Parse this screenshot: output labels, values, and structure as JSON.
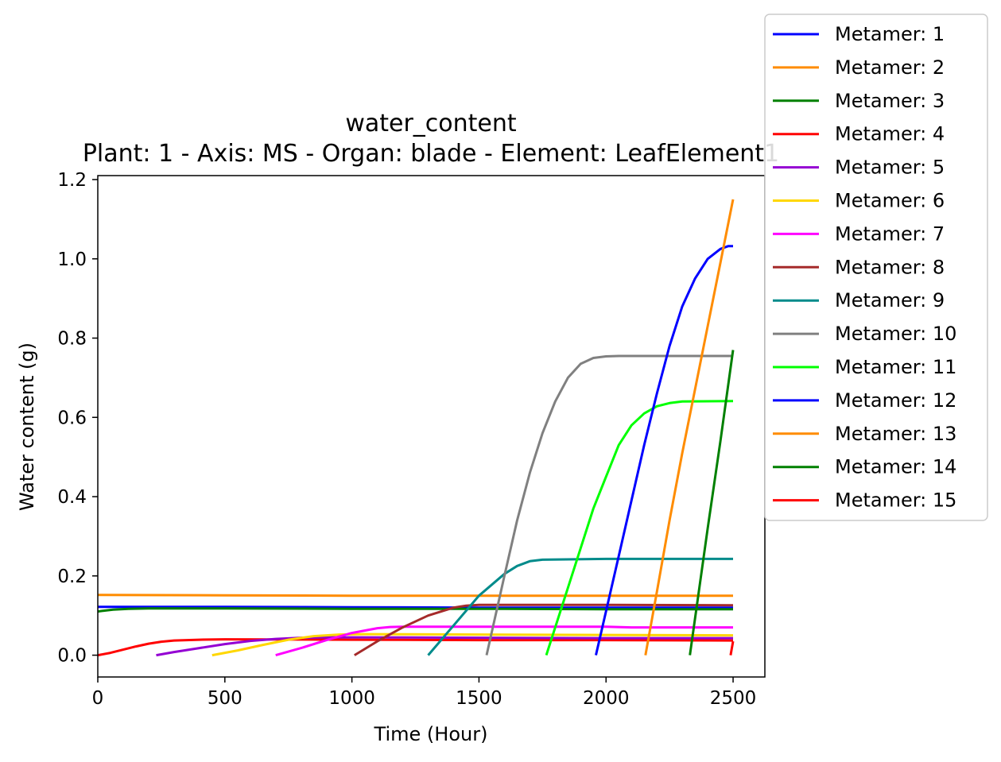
{
  "chart_data": {
    "type": "line",
    "title": "water_content",
    "subtitle": "Plant: 1 - Axis: MS - Organ: blade - Element: LeafElement1",
    "xlabel": "Time (Hour)",
    "ylabel": "Water content (g)",
    "xlim": [
      0,
      2625
    ],
    "ylim": [
      -0.055,
      1.21
    ],
    "x_ticks": [
      "0",
      "500",
      "1000",
      "1500",
      "2000",
      "2500"
    ],
    "y_ticks": [
      "0.0",
      "0.2",
      "0.4",
      "0.6",
      "0.8",
      "1.0",
      "1.2"
    ],
    "grid": false,
    "legend_position": "upper-right-outside",
    "series": [
      {
        "name": "Metamer: 1",
        "color": "#0000ff",
        "x": [
          0,
          500,
          1000,
          1500,
          2000,
          2500
        ],
        "y": [
          0.122,
          0.122,
          0.121,
          0.12,
          0.12,
          0.12
        ]
      },
      {
        "name": "Metamer: 2",
        "color": "#ff8c00",
        "x": [
          0,
          500,
          1000,
          1500,
          2000,
          2500
        ],
        "y": [
          0.152,
          0.151,
          0.15,
          0.15,
          0.15,
          0.15
        ]
      },
      {
        "name": "Metamer: 3",
        "color": "#008000",
        "x": [
          0,
          20,
          60,
          120,
          200,
          500,
          1000,
          1500,
          2000,
          2500
        ],
        "y": [
          0.11,
          0.112,
          0.115,
          0.117,
          0.118,
          0.118,
          0.117,
          0.117,
          0.116,
          0.116
        ]
      },
      {
        "name": "Metamer: 4",
        "color": "#ff0000",
        "x": [
          0,
          50,
          100,
          150,
          200,
          250,
          300,
          400,
          500,
          1000,
          1500,
          2000,
          2500
        ],
        "y": [
          0.0,
          0.006,
          0.014,
          0.022,
          0.029,
          0.034,
          0.037,
          0.039,
          0.04,
          0.039,
          0.038,
          0.038,
          0.037
        ]
      },
      {
        "name": "Metamer: 5",
        "color": "#9400d3",
        "x": [
          230,
          300,
          400,
          500,
          600,
          700,
          800,
          900,
          1000,
          1500,
          2000,
          2500
        ],
        "y": [
          0.0,
          0.008,
          0.018,
          0.028,
          0.036,
          0.041,
          0.044,
          0.045,
          0.045,
          0.044,
          0.043,
          0.043
        ]
      },
      {
        "name": "Metamer: 6",
        "color": "#ffd700",
        "x": [
          450,
          550,
          650,
          750,
          850,
          950,
          1050,
          1500,
          2000,
          2500
        ],
        "y": [
          0.0,
          0.012,
          0.026,
          0.039,
          0.048,
          0.052,
          0.053,
          0.052,
          0.051,
          0.05
        ]
      },
      {
        "name": "Metamer: 7",
        "color": "#ff00ff",
        "x": [
          700,
          800,
          900,
          1000,
          1100,
          1150,
          1200,
          1500,
          2000,
          2100,
          2500
        ],
        "y": [
          0.0,
          0.018,
          0.038,
          0.056,
          0.068,
          0.071,
          0.072,
          0.072,
          0.072,
          0.07,
          0.07
        ]
      },
      {
        "name": "Metamer: 8",
        "color": "#a52a2a",
        "x": [
          1010,
          1100,
          1200,
          1300,
          1400,
          1450,
          1500,
          2000,
          2500
        ],
        "y": [
          0.0,
          0.035,
          0.07,
          0.1,
          0.12,
          0.125,
          0.127,
          0.127,
          0.126
        ]
      },
      {
        "name": "Metamer: 9",
        "color": "#008b8b",
        "x": [
          1300,
          1400,
          1500,
          1600,
          1650,
          1700,
          1750,
          2000,
          2500
        ],
        "y": [
          0.0,
          0.075,
          0.15,
          0.205,
          0.225,
          0.237,
          0.241,
          0.243,
          0.243
        ]
      },
      {
        "name": "Metamer: 10",
        "color": "#808080",
        "x": [
          1530,
          1600,
          1650,
          1700,
          1750,
          1800,
          1850,
          1900,
          1950,
          2000,
          2050,
          2500
        ],
        "y": [
          0.0,
          0.2,
          0.34,
          0.46,
          0.56,
          0.64,
          0.7,
          0.735,
          0.75,
          0.754,
          0.755,
          0.755
        ]
      },
      {
        "name": "Metamer: 11",
        "color": "#00ff00",
        "x": [
          1765,
          1850,
          1900,
          1950,
          2000,
          2050,
          2100,
          2150,
          2200,
          2250,
          2300,
          2500
        ],
        "y": [
          0.0,
          0.17,
          0.27,
          0.37,
          0.45,
          0.53,
          0.58,
          0.61,
          0.628,
          0.636,
          0.64,
          0.641
        ]
      },
      {
        "name": "Metamer: 12",
        "color": "#0000ff",
        "x": [
          1960,
          2050,
          2100,
          2150,
          2200,
          2250,
          2300,
          2350,
          2400,
          2450,
          2480,
          2500
        ],
        "y": [
          0.0,
          0.25,
          0.39,
          0.53,
          0.66,
          0.78,
          0.88,
          0.95,
          1.0,
          1.025,
          1.032,
          1.032
        ]
      },
      {
        "name": "Metamer: 13",
        "color": "#ff8c00",
        "x": [
          2155,
          2200,
          2250,
          2300,
          2350,
          2400,
          2450,
          2500
        ],
        "y": [
          0.0,
          0.16,
          0.34,
          0.51,
          0.67,
          0.83,
          0.99,
          1.15
        ]
      },
      {
        "name": "Metamer: 14",
        "color": "#008000",
        "x": [
          2330,
          2400,
          2450,
          2500
        ],
        "y": [
          0.0,
          0.32,
          0.54,
          0.77
        ]
      },
      {
        "name": "Metamer: 15",
        "color": "#ff0000",
        "x": [
          2490,
          2500
        ],
        "y": [
          0.0,
          0.035
        ]
      }
    ]
  }
}
